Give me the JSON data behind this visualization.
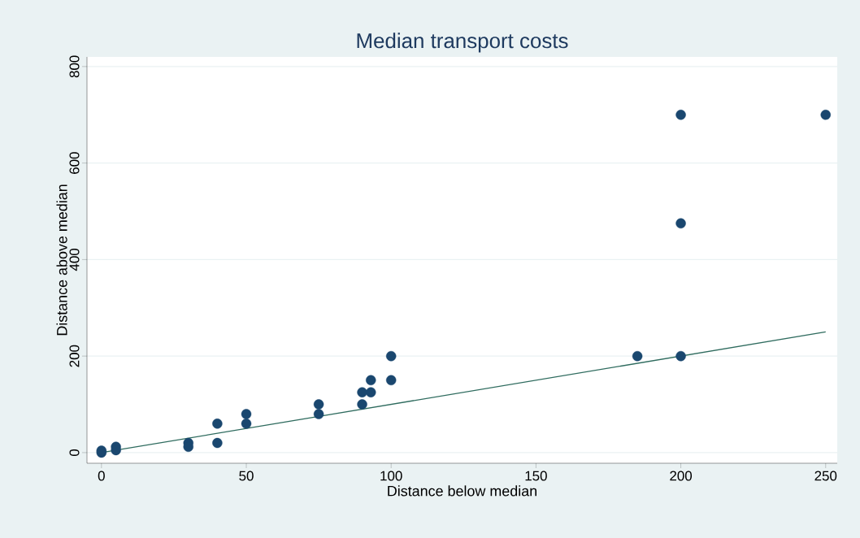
{
  "chart_data": {
    "type": "scatter",
    "title": "Median transport costs",
    "xlabel": "Distance below median",
    "ylabel": "Distance above median",
    "xlim": [
      -5,
      254
    ],
    "ylim": [
      -22,
      820
    ],
    "xticks": [
      0,
      50,
      100,
      150,
      200,
      250
    ],
    "yticks": [
      0,
      200,
      400,
      600,
      800
    ],
    "grid": "y",
    "series": [
      {
        "marker": "circle",
        "color": "#1a476f",
        "x": [
          0,
          0,
          5,
          5,
          30,
          30,
          40,
          40,
          50,
          50,
          75,
          75,
          90,
          90,
          93,
          93,
          100,
          100,
          185,
          200,
          200,
          200,
          250
        ],
        "values": [
          0,
          4,
          12,
          5,
          20,
          12,
          60,
          20,
          80,
          60,
          100,
          80,
          125,
          100,
          150,
          125,
          200,
          150,
          200,
          700,
          475,
          200,
          700
        ]
      },
      {
        "type": "line",
        "marker": "none",
        "color": "#2e6b5e",
        "x": [
          0,
          250
        ],
        "values": [
          0,
          250
        ]
      }
    ]
  }
}
